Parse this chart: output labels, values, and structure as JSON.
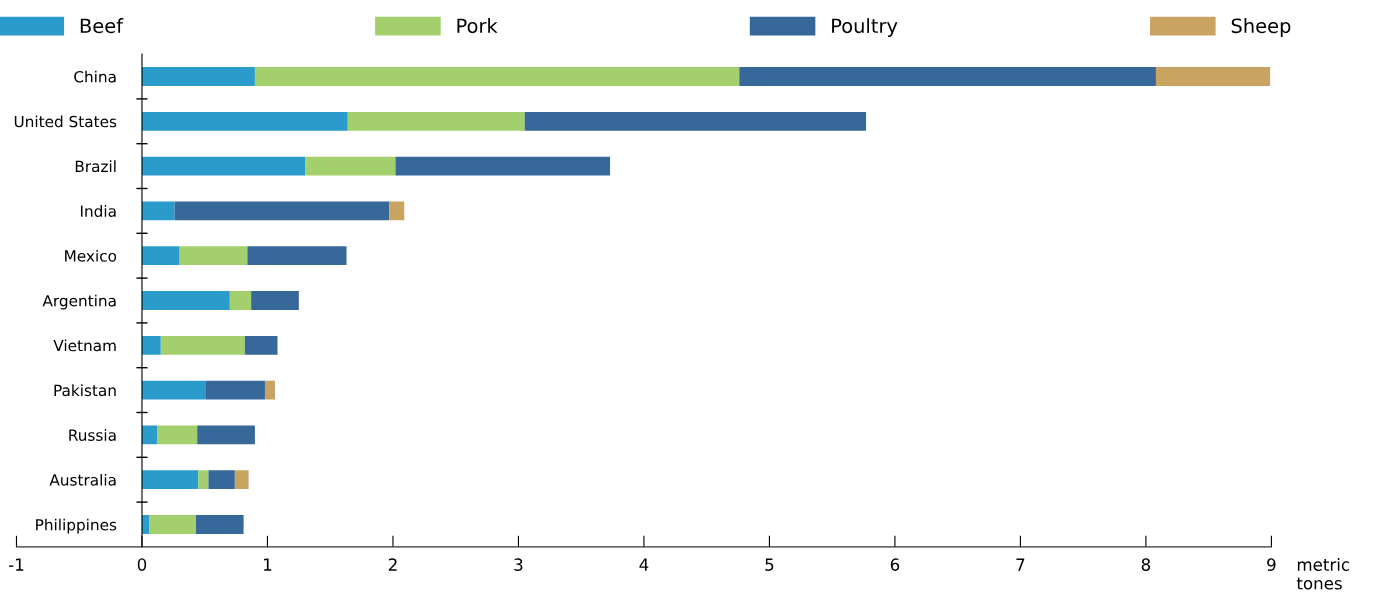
{
  "chart_data": {
    "type": "bar",
    "orientation": "horizontal",
    "stacked": true,
    "xlabel": "metric\ntones",
    "categories": [
      "China",
      "United States",
      "Brazil",
      "India",
      "Mexico",
      "Argentina",
      "Vietnam",
      "Pakistan",
      "Russia",
      "Australia",
      "Philippines"
    ],
    "series": [
      {
        "name": "Beef",
        "color": "#2b9bcb",
        "values": [
          0.9,
          1.64,
          1.3,
          0.26,
          0.3,
          0.7,
          0.15,
          0.51,
          0.12,
          0.45,
          0.06
        ]
      },
      {
        "name": "Pork",
        "color": "#a3cf6c",
        "values": [
          3.86,
          1.41,
          0.72,
          0,
          0.54,
          0.17,
          0.67,
          0,
          0.32,
          0.08,
          0.37
        ]
      },
      {
        "name": "Poultry",
        "color": "#366899",
        "values": [
          3.32,
          2.72,
          1.71,
          1.71,
          0.79,
          0.38,
          0.26,
          0.47,
          0.46,
          0.21,
          0.38
        ]
      },
      {
        "name": "Sheep",
        "color": "#c9a461",
        "values": [
          0.91,
          0,
          0,
          0.12,
          0,
          0,
          0,
          0.08,
          0,
          0.11,
          0
        ]
      }
    ],
    "xlim": [
      -1,
      9
    ],
    "xticks": [
      -1,
      0,
      1,
      2,
      3,
      4,
      5,
      6,
      7,
      8,
      9
    ],
    "grid": false,
    "legend": "top"
  }
}
